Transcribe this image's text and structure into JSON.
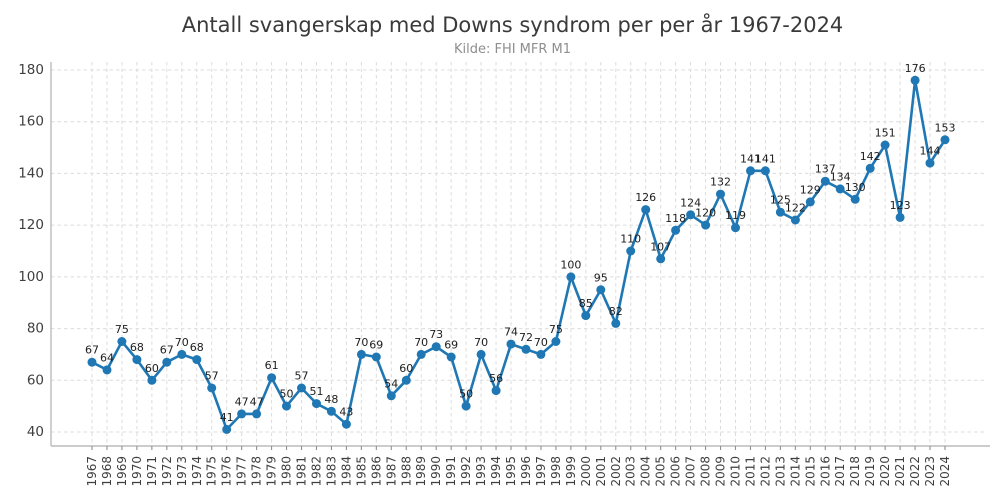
{
  "chart_data": {
    "type": "line",
    "title": "Antall svangerskap med Downs syndrom per per år 1967-2024",
    "subtitle": "Kilde: FHI MFR M1",
    "xlabel": "",
    "ylabel": "",
    "categories": [
      "1967",
      "1968",
      "1969",
      "1970",
      "1971",
      "1972",
      "1973",
      "1974",
      "1975",
      "1976",
      "1977",
      "1978",
      "1979",
      "1980",
      "1981",
      "1982",
      "1983",
      "1984",
      "1985",
      "1986",
      "1987",
      "1988",
      "1989",
      "1990",
      "1991",
      "1992",
      "1993",
      "1994",
      "1995",
      "1996",
      "1997",
      "1998",
      "1999",
      "2000",
      "2001",
      "2002",
      "2003",
      "2004",
      "2005",
      "2006",
      "2007",
      "2008",
      "2009",
      "2010",
      "2011",
      "2012",
      "2013",
      "2014",
      "2015",
      "2016",
      "2017",
      "2018",
      "2019",
      "2020",
      "2021",
      "2022",
      "2023",
      "2024"
    ],
    "values": [
      67,
      64,
      75,
      68,
      60,
      67,
      70,
      68,
      57,
      41,
      47,
      47,
      61,
      50,
      57,
      51,
      48,
      43,
      70,
      69,
      54,
      60,
      70,
      73,
      69,
      50,
      70,
      56,
      74,
      72,
      70,
      75,
      100,
      85,
      95,
      82,
      110,
      126,
      107,
      118,
      124,
      120,
      132,
      119,
      141,
      141,
      125,
      122,
      129,
      137,
      134,
      130,
      142,
      151,
      123,
      176,
      144,
      153
    ],
    "yticks": [
      40,
      60,
      80,
      100,
      120,
      140,
      160,
      180
    ],
    "ylim": [
      40,
      180
    ],
    "grid": true,
    "legend_position": "none",
    "x_tick_rotation": 90,
    "point_labels": true,
    "marker": "circle",
    "colors": {
      "line": "#1f77b4",
      "marker": "#1f77b4",
      "grid": "#dcdcdc",
      "spine": "#bcbcbc",
      "tick_label": "#3f3f3f",
      "point_label": "#1d1d1d",
      "title": "#3a3a3a",
      "subtitle": "#8e8e8e",
      "background": "#ffffff"
    }
  }
}
